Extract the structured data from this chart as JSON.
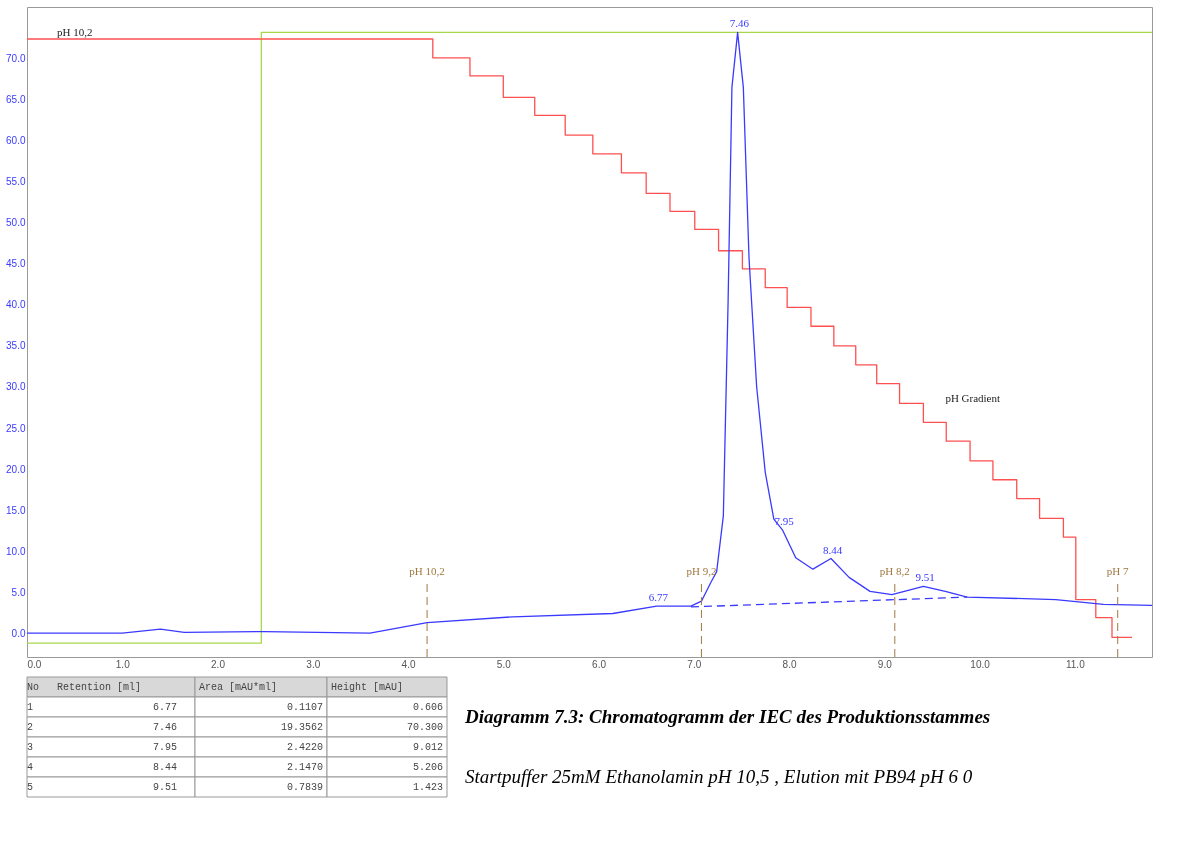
{
  "chart_data": [
    {
      "type": "line",
      "xlim": [
        0,
        11.81
      ],
      "ylim": [
        -2.9,
        76.3
      ],
      "xticks": [
        {
          "value": 0,
          "label": "0.0"
        },
        {
          "value": 1,
          "label": "1.0"
        },
        {
          "value": 2,
          "label": "2.0"
        },
        {
          "value": 3,
          "label": "3.0"
        },
        {
          "value": 4,
          "label": "4.0"
        },
        {
          "value": 5,
          "label": "5.0"
        },
        {
          "value": 6,
          "label": "6.0"
        },
        {
          "value": 7,
          "label": "7.0"
        },
        {
          "value": 8,
          "label": "8.0"
        },
        {
          "value": 9,
          "label": "9.0"
        },
        {
          "value": 10,
          "label": "10.0"
        },
        {
          "value": 11,
          "label": "11.0"
        }
      ],
      "yticks": [
        {
          "value": 0,
          "label": "0.0"
        },
        {
          "value": 5,
          "label": "5.0"
        },
        {
          "value": 10,
          "label": "10.0"
        },
        {
          "value": 15,
          "label": "15.0"
        },
        {
          "value": 20,
          "label": "20.0"
        },
        {
          "value": 25,
          "label": "25.0"
        },
        {
          "value": 30,
          "label": "30.0"
        },
        {
          "value": 35,
          "label": "35.0"
        },
        {
          "value": 40,
          "label": "40.0"
        },
        {
          "value": 45,
          "label": "45.0"
        },
        {
          "value": 50,
          "label": "50.0"
        },
        {
          "value": 55,
          "label": "55.0"
        },
        {
          "value": 60,
          "label": "60.0"
        },
        {
          "value": 65,
          "label": "65.0"
        },
        {
          "value": 70,
          "label": "70.0"
        }
      ],
      "grid": false,
      "series": [
        {
          "type": "step",
          "color": "#a8d84a",
          "x": [
            0,
            2.46,
            11.81
          ],
          "values": [
            -1.2,
            73.2,
            73.2
          ]
        },
        {
          "type": "step",
          "name": "pH Gradient",
          "color": "#ff5050",
          "x": [
            0,
            4.26,
            4.65,
            5.0,
            5.33,
            5.65,
            5.94,
            6.24,
            6.5,
            6.75,
            7.01,
            7.26,
            7.51,
            7.75,
            7.98,
            8.23,
            8.47,
            8.7,
            8.92,
            9.16,
            9.41,
            9.65,
            9.9,
            10.14,
            10.39,
            10.63,
            10.88,
            11.01,
            11.22,
            11.39,
            11.6
          ],
          "values": [
            72.4,
            70.1,
            67.9,
            65.3,
            63.1,
            60.7,
            58.4,
            56.1,
            53.6,
            51.4,
            49.2,
            46.6,
            44.4,
            42.1,
            39.7,
            37.4,
            35.0,
            32.7,
            30.4,
            28.0,
            25.7,
            23.4,
            21.0,
            18.7,
            16.4,
            14.0,
            11.7,
            4.1,
            1.9,
            -0.5,
            -0.5
          ]
        },
        {
          "type": "line",
          "color": "#3a3aff",
          "x": [
            0,
            1.0,
            1.4,
            1.65,
            2.5,
            3.6,
            4.2,
            5.1,
            6.15,
            6.61,
            6.97,
            7.08,
            7.18,
            7.24,
            7.31,
            7.36,
            7.4,
            7.46,
            7.52,
            7.58,
            7.66,
            7.75,
            7.84,
            7.93,
            8.07,
            8.25,
            8.44,
            8.63,
            8.85,
            9.08,
            9.41,
            9.64,
            9.87,
            10.8,
            11.3,
            11.81
          ],
          "values": [
            0,
            0,
            0.5,
            0.1,
            0.2,
            0,
            1.3,
            2.0,
            2.4,
            3.3,
            3.3,
            3.9,
            6.2,
            7.5,
            14.3,
            40.4,
            66.5,
            73.2,
            66.5,
            45.6,
            30.0,
            19.6,
            13.9,
            12.6,
            9.2,
            7.8,
            9.1,
            6.8,
            5.1,
            4.7,
            5.7,
            5.1,
            4.4,
            4.1,
            3.5,
            3.4
          ]
        },
        {
          "type": "line",
          "color": "#3a3aff",
          "line_style": "dashed",
          "x": [
            6.97,
            9.87
          ],
          "values": [
            3.2,
            4.4
          ]
        }
      ],
      "ref_lines": [
        {
          "axis": "x",
          "value": 4.2,
          "label": "pH 10,2",
          "color": "#a07840",
          "line_style": "dashed"
        },
        {
          "axis": "x",
          "value": 7.08,
          "label": "pH 9,2",
          "color": "#a07840",
          "line_style": "dashed"
        },
        {
          "axis": "x",
          "value": 9.11,
          "label": "pH 8,2",
          "color": "#a07840",
          "line_style": "dashed"
        },
        {
          "axis": "x",
          "value": 11.45,
          "label": "pH 7",
          "color": "#a07840",
          "line_style": "dashed"
        }
      ],
      "annotations": [
        "pH 10,2",
        {
          "text": "6.77",
          "x": 6.61,
          "y": 3.3
        },
        {
          "text": "7.46",
          "x": 7.46,
          "y": 73.2
        },
        {
          "text": "7.95",
          "x": 7.93,
          "y": 12.6
        },
        {
          "text": "8.44",
          "x": 8.44,
          "y": 9.1
        },
        {
          "text": "9.51",
          "x": 9.41,
          "y": 5.7
        }
      ]
    },
    {
      "type": "other",
      "title": "Diagramm 7.3:   Chromatogramm der IEC des Produktionsstammes",
      "subtitle": "Startpuffer 25mM Ethanolamin pH 10,5 , Elution mit PB94 pH 6 0",
      "categories": [
        "No",
        "Retention [ml]",
        "Area [mAU*ml]",
        "Height [mAU]"
      ],
      "cell_labels": [
        [
          "1",
          "6.77",
          "0.1107",
          "0.606"
        ],
        [
          "2",
          "7.46",
          "19.3562",
          "70.300"
        ],
        [
          "3",
          "7.95",
          "2.4220",
          "9.012"
        ],
        [
          "4",
          "8.44",
          "2.1470",
          "5.206"
        ],
        [
          "5",
          "9.51",
          "0.7839",
          "1.423"
        ]
      ]
    }
  ]
}
